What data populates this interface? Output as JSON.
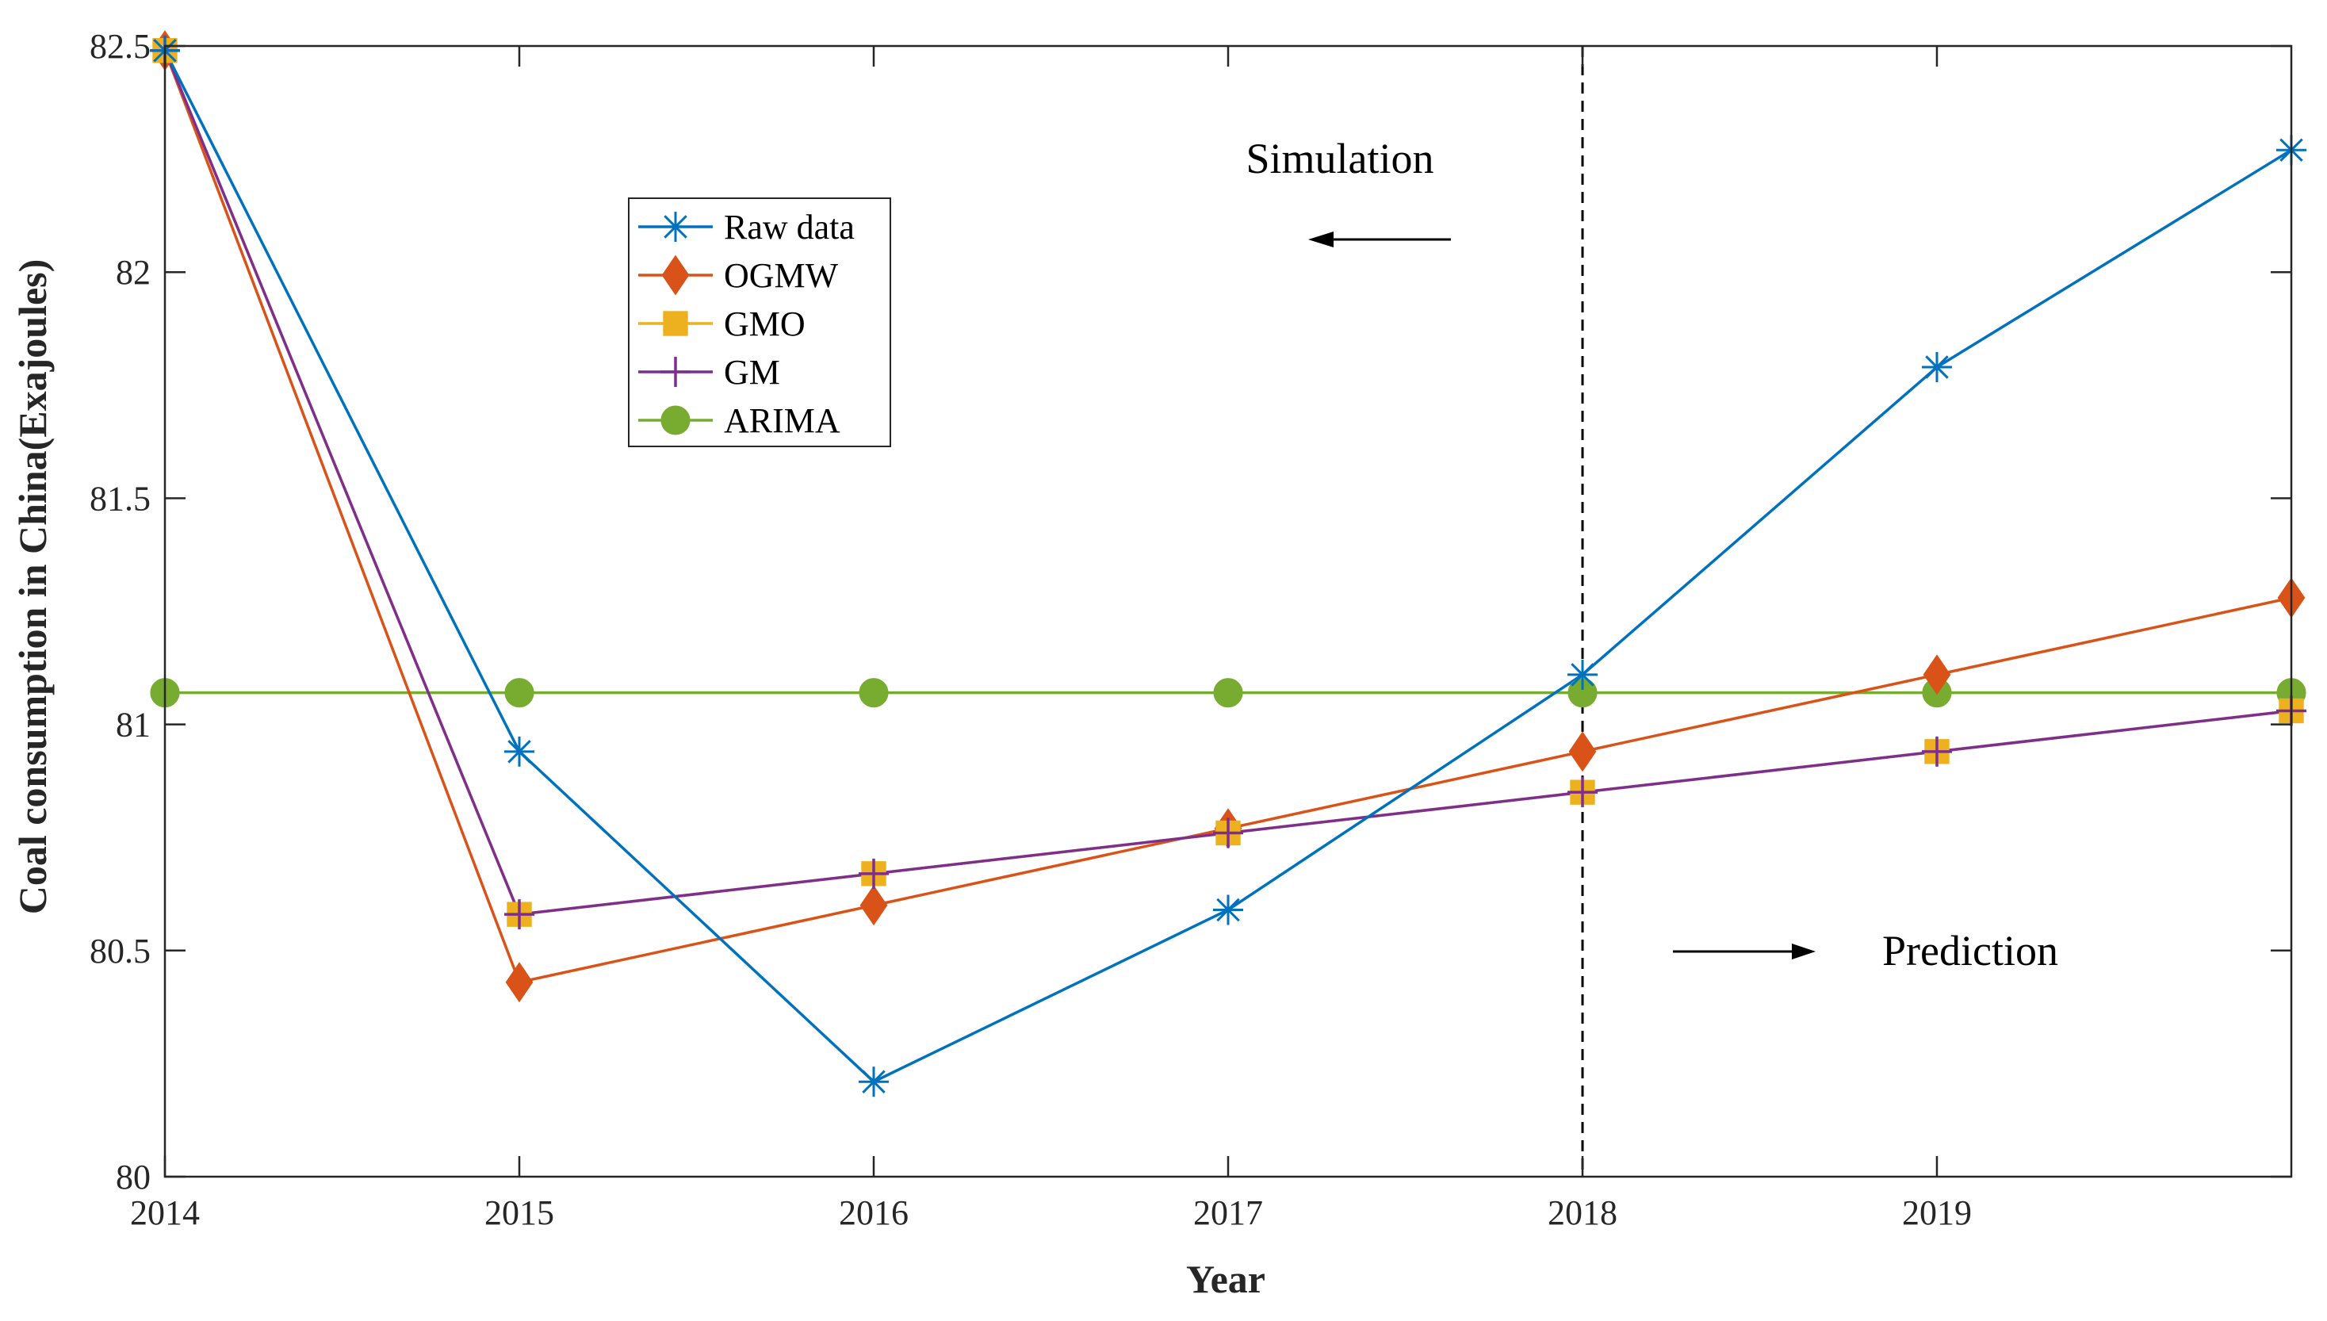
{
  "chart_data": {
    "type": "line",
    "xlabel": "Year",
    "ylabel": "Coal consumption in China(Exajoules)",
    "x": [
      2014,
      2015,
      2016,
      2017,
      2018,
      2019,
      2020
    ],
    "x_tick_labels": [
      "2014",
      "2015",
      "2016",
      "2017",
      "2018",
      "2019"
    ],
    "xlim": [
      2014,
      2020
    ],
    "ylim": [
      80,
      82.5
    ],
    "y_ticks": [
      80,
      80.5,
      81,
      81.5,
      82,
      82.5
    ],
    "y_tick_labels": [
      "80",
      "80.5",
      "81",
      "81.5",
      "82",
      "82.5"
    ],
    "divider_x": 2018,
    "annotations": {
      "simulation": "Simulation",
      "prediction": "Prediction"
    },
    "series": [
      {
        "name": "Raw data",
        "color": "#0072BD",
        "marker": "asterisk",
        "values": [
          82.49,
          80.94,
          80.21,
          80.59,
          81.11,
          81.79,
          82.27
        ]
      },
      {
        "name": "OGMW",
        "color": "#D95319",
        "marker": "diamond",
        "values": [
          82.49,
          80.43,
          80.6,
          80.77,
          80.94,
          81.11,
          81.28
        ]
      },
      {
        "name": "GMO",
        "color": "#EDB120",
        "marker": "square",
        "values": [
          82.49,
          80.58,
          80.67,
          80.76,
          80.85,
          80.94,
          81.03
        ]
      },
      {
        "name": "GM",
        "color": "#7E2F8E",
        "marker": "plus",
        "values": [
          82.49,
          80.58,
          80.67,
          80.76,
          80.85,
          80.94,
          81.03
        ]
      },
      {
        "name": "ARIMA",
        "color": "#77AC30",
        "marker": "circle",
        "values": [
          81.07,
          81.07,
          81.07,
          81.07,
          81.07,
          81.07,
          81.07
        ]
      }
    ]
  }
}
